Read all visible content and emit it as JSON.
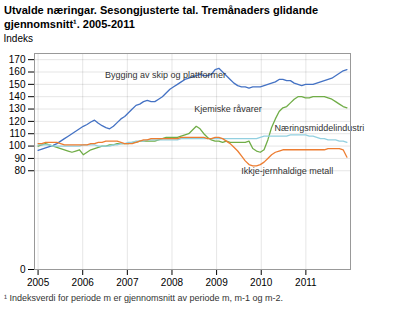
{
  "chart_data": {
    "type": "line",
    "title": "Utvalde næringar. Sesongjusterte tal. Tremånaders glidande",
    "subtitle": "gjennomsnitt¹. 2005-2011",
    "caption": "¹ Indeksverdi for periode m er gjennomsnitt av periode m, m-1 og m-2.",
    "ylabel": "Indeks",
    "x": [
      2005,
      2005.0844,
      2005.1688,
      2005.2532,
      2005.3376,
      2005.422,
      2005.5063,
      2005.5907,
      2005.6751,
      2005.7595,
      2005.8439,
      2005.9283,
      2006.0127,
      2006.0971,
      2006.1815,
      2006.2659,
      2006.3502,
      2006.4346,
      2006.519,
      2006.6034,
      2006.6878,
      2006.7722,
      2006.8566,
      2006.941,
      2007.0254,
      2007.1098,
      2007.1941,
      2007.2785,
      2007.3629,
      2007.4473,
      2007.5317,
      2007.6161,
      2007.7005,
      2007.7849,
      2007.8693,
      2007.9537,
      2008.038,
      2008.1224,
      2008.2068,
      2008.2912,
      2008.3756,
      2008.46,
      2008.5444,
      2008.6288,
      2008.7132,
      2008.7976,
      2008.882,
      2008.9663,
      2009.0507,
      2009.1351,
      2009.2195,
      2009.3039,
      2009.3883,
      2009.4727,
      2009.5571,
      2009.6415,
      2009.7259,
      2009.8102,
      2009.8946,
      2009.979,
      2010.0634,
      2010.1478,
      2010.2322,
      2010.3166,
      2010.401,
      2010.4854,
      2010.5698,
      2010.6541,
      2010.7385,
      2010.8229,
      2010.9073,
      2010.9917,
      2011.0761,
      2011.1605,
      2011.2449,
      2011.3293,
      2011.4137,
      2011.498,
      2011.5824,
      2011.6668,
      2011.7512,
      2011.8356,
      2011.92
    ],
    "series": [
      {
        "name": "Bygging av skip og plattformer",
        "color": "#4472C4",
        "values": [
          96.5,
          97.5,
          98.5,
          99.5,
          100.5,
          102,
          104,
          106,
          108,
          110,
          112,
          114,
          116,
          117.5,
          119.5,
          121,
          118.5,
          116.5,
          115,
          114,
          116,
          119,
          122,
          124,
          127,
          130,
          133,
          134,
          136,
          137,
          136,
          136,
          138,
          140,
          143,
          146,
          148,
          150,
          152,
          154,
          155,
          156,
          157,
          158,
          157,
          157,
          158,
          162,
          163,
          160,
          157,
          154,
          151,
          149,
          148,
          148,
          147,
          148,
          148,
          148,
          149,
          150,
          151,
          152,
          154,
          154,
          153,
          153,
          151,
          150,
          149,
          150,
          150,
          150,
          151,
          152,
          153,
          154,
          155,
          157,
          159,
          161,
          162
        ]
      },
      {
        "name": "Kjemiske råvarer",
        "color": "#70AD47",
        "values": [
          100,
          101,
          102,
          101,
          100,
          99,
          98,
          97,
          96,
          95,
          96,
          97,
          93,
          95,
          97,
          98,
          99,
          100,
          100,
          101,
          101,
          102,
          102,
          102,
          102,
          103,
          103,
          104,
          104,
          104,
          104,
          104,
          105,
          106,
          107,
          107,
          107,
          107,
          108,
          109,
          110,
          113,
          116,
          114,
          110,
          107,
          105,
          104,
          104,
          103,
          104,
          103,
          103,
          103,
          103,
          103,
          104,
          98,
          96,
          95,
          97,
          105,
          115,
          122,
          128,
          131,
          132,
          135,
          138,
          140,
          140,
          139,
          139,
          140,
          140,
          140,
          140,
          139,
          138,
          136,
          134,
          132,
          131
        ]
      },
      {
        "name": "Næringsmiddelindustri",
        "color": "#92D0E0",
        "values": [
          101,
          101,
          101,
          101,
          100,
          100,
          100,
          100,
          100,
          100,
          100,
          100,
          101,
          101,
          101,
          101,
          100,
          100,
          100,
          100,
          101,
          101,
          102,
          102,
          103,
          103,
          104,
          104,
          104,
          105,
          105,
          105,
          105,
          105,
          105,
          105,
          105,
          105,
          106,
          106,
          106,
          106,
          106,
          106,
          106,
          106,
          106,
          106,
          106,
          106,
          106,
          106,
          106,
          106,
          106,
          106,
          106,
          106,
          106,
          107,
          108,
          108,
          108,
          108,
          108,
          108,
          108,
          109,
          109,
          109,
          109,
          109,
          108,
          108,
          107,
          106,
          106,
          105,
          105,
          105,
          104,
          104,
          103
        ]
      },
      {
        "name": "Ikkje-jernhaldige metall",
        "color": "#ED7D31",
        "values": [
          102,
          102,
          103,
          103,
          103,
          103,
          102,
          101,
          101,
          101,
          101,
          101,
          101,
          101,
          102,
          102,
          103,
          103,
          104,
          104,
          104,
          104,
          103,
          102,
          102,
          102,
          103,
          104,
          105,
          105,
          106,
          106,
          106,
          106,
          106,
          106,
          106,
          106,
          107,
          107,
          107,
          107,
          107,
          107,
          107,
          106,
          106,
          107,
          107,
          106,
          104,
          102,
          99,
          96,
          92,
          88,
          85,
          84,
          84,
          85,
          87,
          90,
          93,
          95,
          96,
          97,
          97,
          97,
          97,
          97,
          97,
          97,
          97,
          97,
          97,
          97,
          97,
          98,
          98,
          98,
          98,
          97,
          91
        ]
      }
    ],
    "annotations": [
      {
        "text": "Bygging av skip og plattformer",
        "x": 2006.5,
        "y": 155
      },
      {
        "text": "Kjemiske råvarer",
        "x": 2008.5,
        "y": 128
      },
      {
        "text": "Næringsmiddelindustri",
        "x": 2010.3,
        "y": 112
      },
      {
        "text": "Ikkje-jernhaldige metall",
        "x": 2009.55,
        "y": 77
      }
    ],
    "xlim": [
      2004.92,
      2012
    ],
    "xticks": [
      2005,
      2006,
      2007,
      2008,
      2009,
      2010,
      2011
    ],
    "ylim": [
      0,
      175
    ],
    "yticks": [
      0,
      80,
      90,
      100,
      110,
      120,
      130,
      140,
      150,
      160,
      170
    ],
    "grid": true
  }
}
